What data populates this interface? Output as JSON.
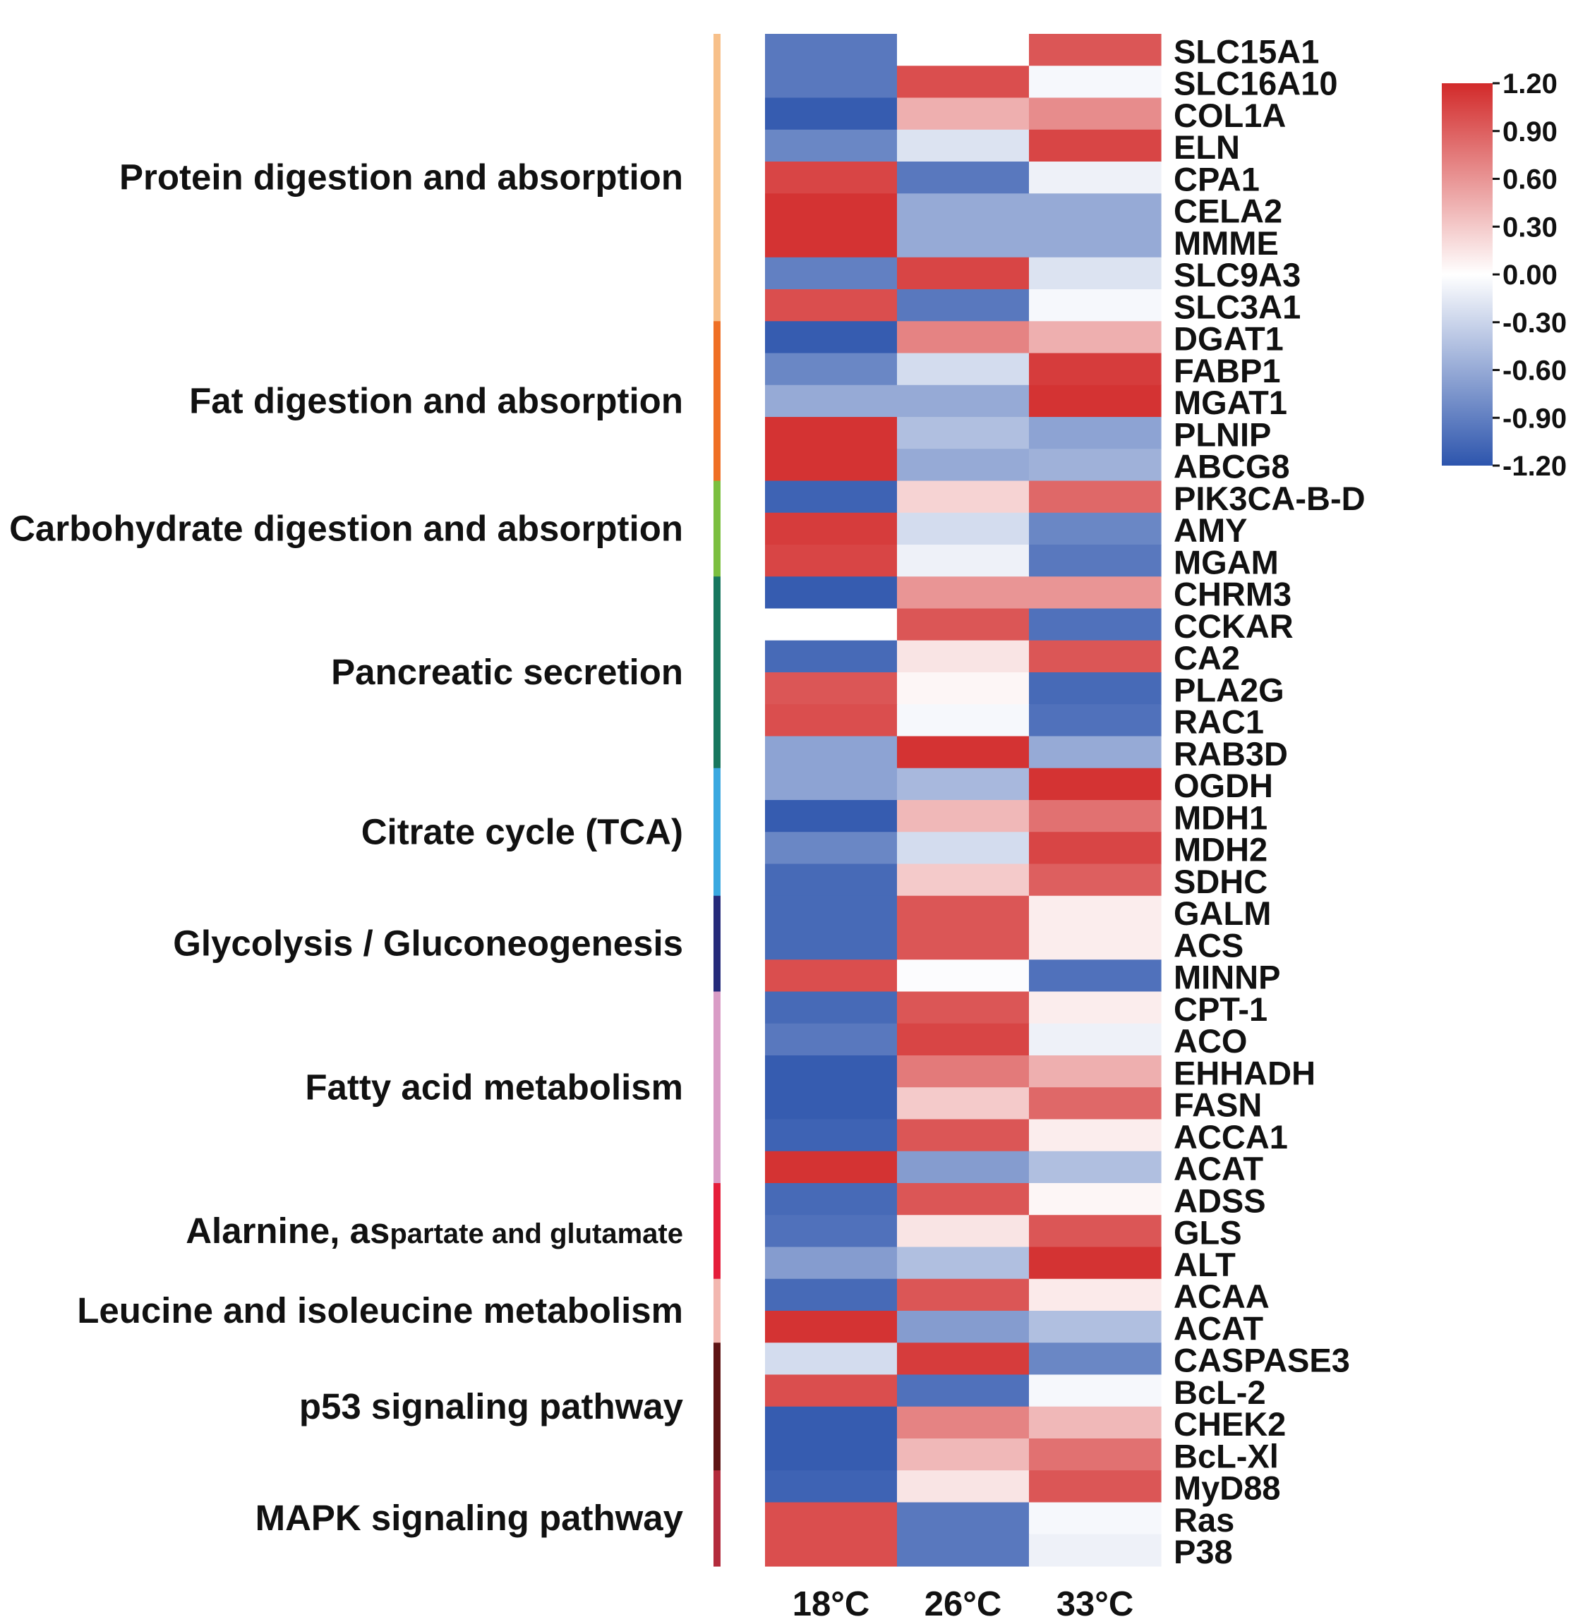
{
  "chart_data": {
    "type": "heatmap",
    "title": "",
    "columns": [
      "18°C",
      "26°C",
      "33°C"
    ],
    "colorbar": {
      "min": -1.2,
      "max": 1.2,
      "colors": {
        "low": "#2d55ad",
        "mid": "#ffffff",
        "high": "#d22a2a"
      },
      "ticks": [
        "1.20",
        "0.90",
        "0.60",
        "0.30",
        "0.00",
        "-0.30",
        "-0.60",
        "-0.90",
        "-1.20"
      ]
    },
    "categories": [
      {
        "name": "Protein digestion and absorption",
        "color": "#f7c08a",
        "rows": 9
      },
      {
        "name": "Fat digestion and absorption",
        "color": "#ef6f24",
        "rows": 5
      },
      {
        "name": "Carbohydrate digestion and absorption",
        "color": "#7bbf3f",
        "rows": 3
      },
      {
        "name": "Pancreatic secretion",
        "color": "#17775e",
        "rows": 6
      },
      {
        "name": "Citrate cycle (TCA)",
        "color": "#3aa8e0",
        "rows": 4
      },
      {
        "name": "Glycolysis / Gluconeogenesis",
        "color": "#252a7a",
        "rows": 3
      },
      {
        "name": "Fatty acid metabolism",
        "color": "#d99cc6",
        "rows": 6
      },
      {
        "name": "Alarnine, aspartate and glutamate",
        "name_parts": [
          "Alarnine, as",
          "partate and glutamate"
        ],
        "color": "#e51d3a",
        "rows": 3
      },
      {
        "name": "Leucine and isoleucine metabolism",
        "color": "#f2b7b0",
        "rows": 2
      },
      {
        "name": "p53 signaling pathway",
        "color": "#5e1414",
        "rows": 4
      },
      {
        "name": "MAPK signaling pathway",
        "color": "#b32b3c",
        "rows": 3
      }
    ],
    "genes": [
      "SLC15A1",
      "SLC16A10",
      "COL1A",
      "ELN",
      "CPA1",
      "CELA2",
      "MMME",
      "SLC9A3",
      "SLC3A1",
      "DGAT1",
      "FABP1",
      "MGAT1",
      "PLNIP",
      "ABCG8",
      "PIK3CA-B-D",
      "AMY",
      "MGAM",
      "CHRM3",
      "CCKAR",
      "CA2",
      "PLA2G",
      "RAC1",
      "RAB3D",
      "OGDH",
      "MDH1",
      "MDH2",
      "SDHC",
      "GALM",
      "ACS",
      "MINNP",
      "CPT-1",
      "ACO",
      "EHHADH",
      "FASN",
      "ACCA1",
      "ACAT",
      "ADSS",
      "GLS",
      "ALT",
      "ACAA",
      "ACAT",
      "CASPASE3",
      "BcL-2",
      "CHEK2",
      "BcL-Xl",
      "MyD88",
      "Ras",
      "P38"
    ],
    "values": [
      [
        -0.95,
        0.0,
        0.95
      ],
      [
        -0.95,
        1.0,
        -0.05
      ],
      [
        -1.15,
        0.45,
        0.65
      ],
      [
        -0.85,
        -0.2,
        1.05
      ],
      [
        1.05,
        -0.95,
        -0.1
      ],
      [
        1.15,
        -0.6,
        -0.6
      ],
      [
        1.15,
        -0.6,
        -0.6
      ],
      [
        -0.9,
        1.05,
        -0.2
      ],
      [
        1.0,
        -0.95,
        -0.05
      ],
      [
        -1.15,
        0.7,
        0.45
      ],
      [
        -0.85,
        -0.25,
        1.1
      ],
      [
        -0.6,
        -0.6,
        1.15
      ],
      [
        1.15,
        -0.45,
        -0.65
      ],
      [
        1.15,
        -0.6,
        -0.55
      ],
      [
        -1.1,
        0.25,
        0.85
      ],
      [
        1.1,
        -0.25,
        -0.85
      ],
      [
        1.05,
        -0.1,
        -0.95
      ],
      [
        -1.15,
        0.6,
        0.6
      ],
      [
        0.0,
        0.95,
        -1.0
      ],
      [
        -1.05,
        0.15,
        0.95
      ],
      [
        0.95,
        0.05,
        -1.05
      ],
      [
        1.0,
        -0.05,
        -1.0
      ],
      [
        -0.65,
        1.15,
        -0.6
      ],
      [
        -0.65,
        -0.5,
        1.15
      ],
      [
        -1.15,
        0.4,
        0.8
      ],
      [
        -0.85,
        -0.25,
        1.05
      ],
      [
        -1.05,
        0.3,
        0.9
      ],
      [
        -1.05,
        0.95,
        0.1
      ],
      [
        -1.05,
        0.95,
        0.1
      ],
      [
        1.0,
        -0.02,
        -1.0
      ],
      [
        -1.05,
        0.95,
        0.1
      ],
      [
        -0.95,
        1.05,
        -0.1
      ],
      [
        -1.15,
        0.75,
        0.45
      ],
      [
        -1.15,
        0.3,
        0.85
      ],
      [
        -1.1,
        0.95,
        0.1
      ],
      [
        1.15,
        -0.7,
        -0.45
      ],
      [
        -1.05,
        0.95,
        0.05
      ],
      [
        -1.0,
        0.15,
        0.95
      ],
      [
        -0.7,
        -0.45,
        1.15
      ],
      [
        -1.05,
        0.95,
        0.12
      ],
      [
        1.15,
        -0.7,
        -0.45
      ],
      [
        -0.25,
        1.1,
        -0.85
      ],
      [
        1.0,
        -1.0,
        -0.05
      ],
      [
        -1.15,
        0.7,
        0.4
      ],
      [
        -1.15,
        0.4,
        0.8
      ],
      [
        -1.1,
        0.15,
        0.95
      ],
      [
        1.0,
        -0.95,
        -0.05
      ],
      [
        1.0,
        -0.95,
        -0.1
      ]
    ]
  }
}
